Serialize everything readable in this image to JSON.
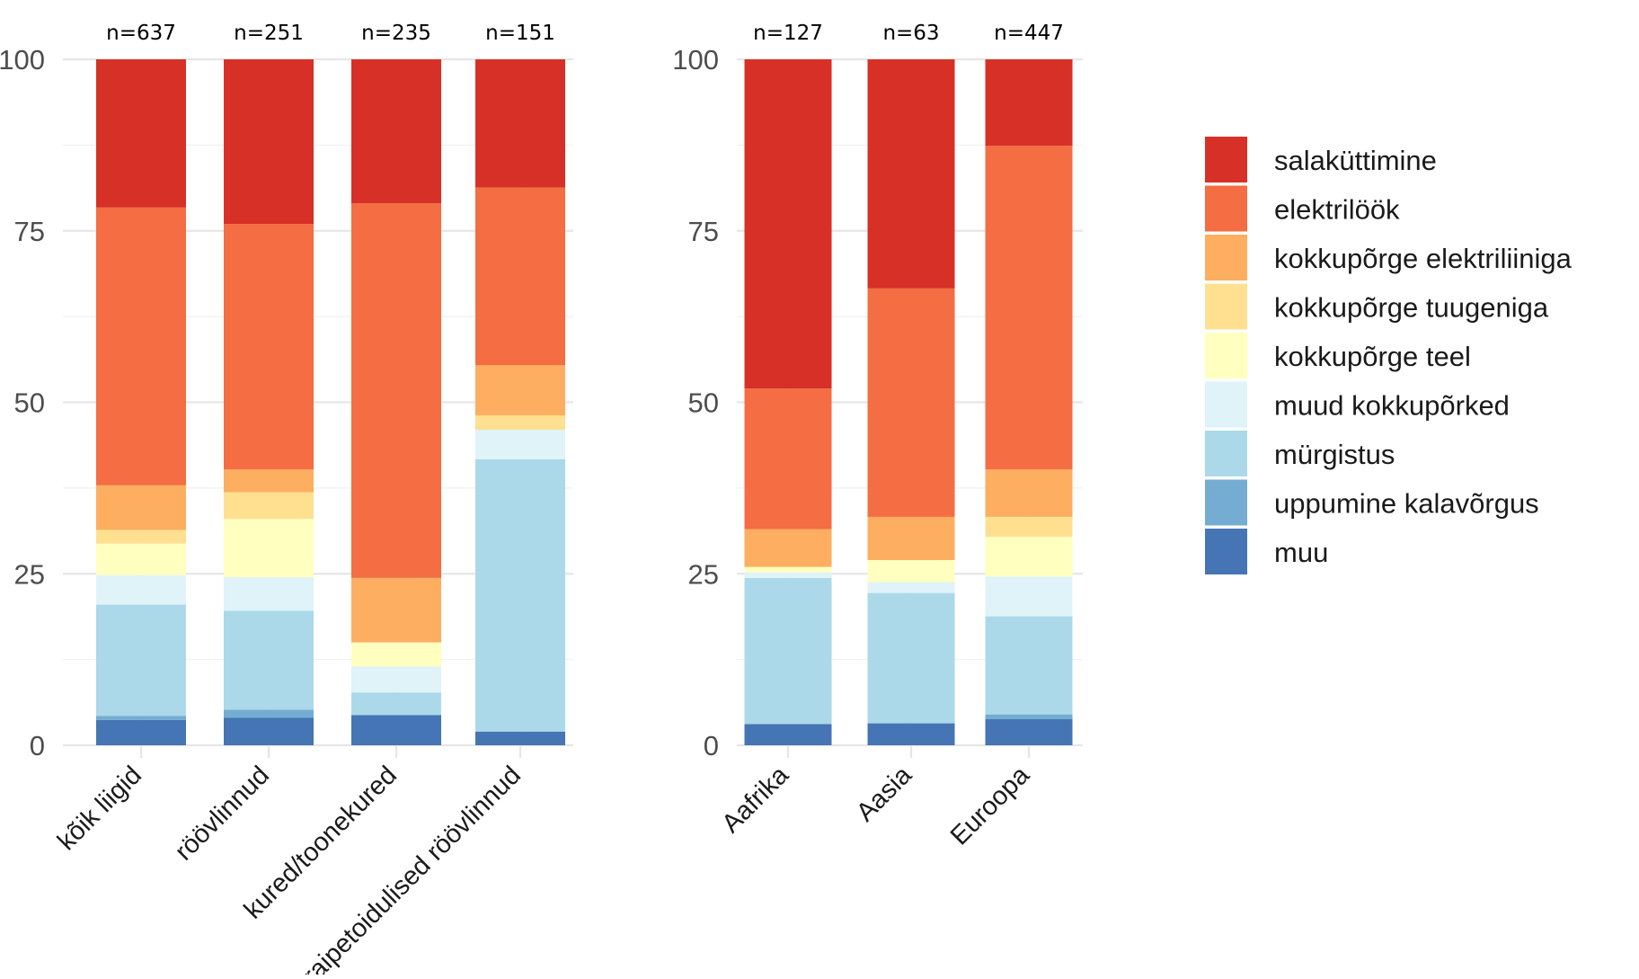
{
  "chart_data": [
    {
      "type": "bar",
      "stacked": true,
      "panel": "species",
      "ylim": [
        0,
        100
      ],
      "yticks": [
        "0",
        "25",
        "50",
        "75",
        "100"
      ],
      "grid": true,
      "categories": [
        "kõik liigid",
        "röövlinnud",
        "kured/toonekured",
        "raipetoidulised röövlinnud"
      ],
      "counts": [
        "n=637",
        "n=251",
        "n=235",
        "n=151"
      ],
      "series": [
        {
          "name": "muu",
          "values": [
            3.7,
            4.0,
            4.4,
            2.0
          ]
        },
        {
          "name": "uppumine kalavõrgus",
          "values": [
            0.6,
            1.2,
            0,
            0
          ]
        },
        {
          "name": "mürgistus",
          "values": [
            16.2,
            14.4,
            3.3,
            39.7
          ]
        },
        {
          "name": "muud kokkupõrked",
          "values": [
            4.3,
            4.9,
            3.8,
            4.3
          ]
        },
        {
          "name": "kokkupõrge teel",
          "values": [
            4.6,
            8.5,
            3.5,
            0
          ]
        },
        {
          "name": "kokkupõrge tuugeniga",
          "values": [
            2.0,
            3.9,
            0,
            2.1
          ]
        },
        {
          "name": "kokkupõrge elektriliiniga",
          "values": [
            6.5,
            3.3,
            9.4,
            7.3
          ]
        },
        {
          "name": "elektrilöök",
          "values": [
            40.5,
            35.8,
            54.6,
            25.9
          ]
        },
        {
          "name": "salaküttimine",
          "values": [
            21.6,
            24.0,
            21.0,
            18.7
          ]
        }
      ]
    },
    {
      "type": "bar",
      "stacked": true,
      "panel": "region",
      "ylim": [
        0,
        100
      ],
      "yticks": [
        "0",
        "25",
        "50",
        "75",
        "100"
      ],
      "grid": true,
      "categories": [
        "Aafrika",
        "Aasia",
        "Euroopa"
      ],
      "counts": [
        "n=127",
        "n=63",
        "n=447"
      ],
      "series": [
        {
          "name": "muu",
          "values": [
            3.1,
            3.2,
            3.8
          ]
        },
        {
          "name": "uppumine kalavõrgus",
          "values": [
            0,
            0,
            0.7
          ]
        },
        {
          "name": "mürgistus",
          "values": [
            21.3,
            19.0,
            14.3
          ]
        },
        {
          "name": "muud kokkupõrked",
          "values": [
            0.8,
            1.6,
            5.8
          ]
        },
        {
          "name": "kokkupõrge teel",
          "values": [
            0.8,
            3.2,
            5.8
          ]
        },
        {
          "name": "kokkupõrge tuugeniga",
          "values": [
            0,
            0,
            2.9
          ]
        },
        {
          "name": "kokkupõrge elektriliiniga",
          "values": [
            5.5,
            6.3,
            6.9
          ]
        },
        {
          "name": "elektrilöök",
          "values": [
            20.5,
            33.3,
            47.2
          ]
        },
        {
          "name": "salaküttimine",
          "values": [
            48.0,
            33.4,
            12.6
          ]
        }
      ]
    }
  ],
  "legend": {
    "position": "right",
    "items": [
      {
        "label": "salaküttimine",
        "color": "#d73027"
      },
      {
        "label": "elektrilöök",
        "color": "#f46d43"
      },
      {
        "label": "kokkupõrge elektriliiniga",
        "color": "#fdae61"
      },
      {
        "label": "kokkupõrge tuugeniga",
        "color": "#fee090"
      },
      {
        "label": "kokkupõrge teel",
        "color": "#ffffbf"
      },
      {
        "label": "muud kokkupõrked",
        "color": "#e0f3f8"
      },
      {
        "label": "mürgistus",
        "color": "#abd9e9"
      },
      {
        "label": "uppumine kalavõrgus",
        "color": "#74add1"
      },
      {
        "label": "muu",
        "color": "#4575b4"
      }
    ]
  }
}
